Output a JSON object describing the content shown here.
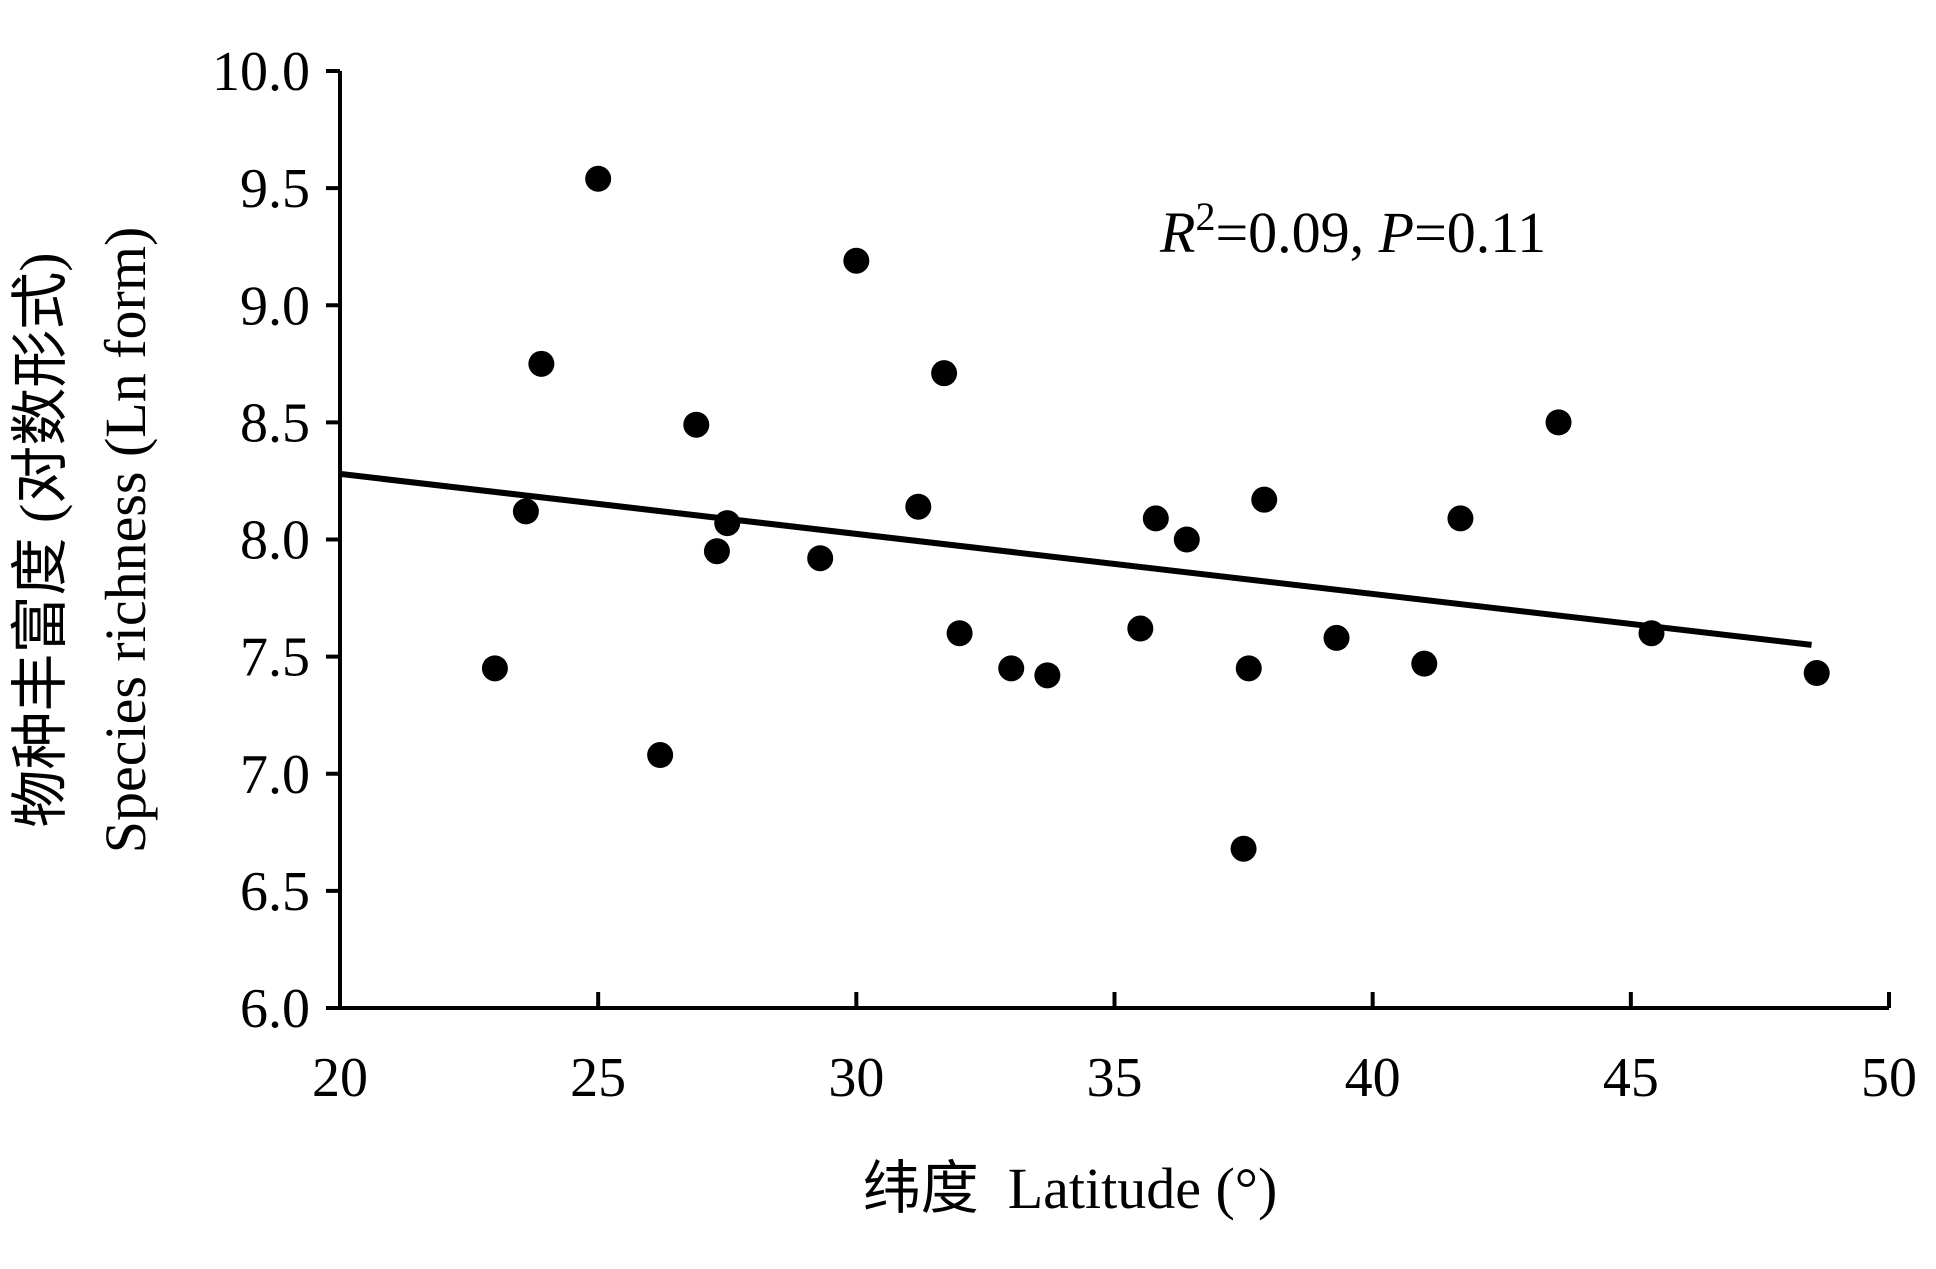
{
  "chart_data": {
    "type": "scatter",
    "xlabel": "纬度  Latitude (°)",
    "ylabel_cn": "物种丰富度 (对数形式)",
    "ylabel_en": "Species richness (Ln form)",
    "xlim": [
      20,
      50
    ],
    "ylim": [
      6.0,
      10.0
    ],
    "x_ticks": [
      20,
      25,
      30,
      35,
      40,
      45,
      50
    ],
    "y_ticks": [
      6.0,
      6.5,
      7.0,
      7.5,
      8.0,
      8.5,
      9.0,
      9.5,
      10.0
    ],
    "x_tick_labels": [
      "20",
      "25",
      "30",
      "35",
      "40",
      "45",
      "50"
    ],
    "y_tick_labels": [
      "6.0",
      "6.5",
      "7.0",
      "7.5",
      "8.0",
      "8.5",
      "9.0",
      "9.5",
      "10.0"
    ],
    "annotation": {
      "r_symbol": "R",
      "r_exp": "2",
      "r_value": "=0.09, ",
      "p_symbol": "P",
      "p_value": "=0.11"
    },
    "points": [
      {
        "x": 23.0,
        "y": 7.45
      },
      {
        "x": 23.6,
        "y": 8.12
      },
      {
        "x": 23.9,
        "y": 8.75
      },
      {
        "x": 25.0,
        "y": 9.54
      },
      {
        "x": 26.2,
        "y": 7.08
      },
      {
        "x": 26.9,
        "y": 8.49
      },
      {
        "x": 27.3,
        "y": 7.95
      },
      {
        "x": 27.5,
        "y": 8.07
      },
      {
        "x": 29.3,
        "y": 7.92
      },
      {
        "x": 30.0,
        "y": 9.19
      },
      {
        "x": 31.2,
        "y": 8.14
      },
      {
        "x": 31.7,
        "y": 8.71
      },
      {
        "x": 32.0,
        "y": 7.6
      },
      {
        "x": 33.0,
        "y": 7.45
      },
      {
        "x": 33.7,
        "y": 7.42
      },
      {
        "x": 35.5,
        "y": 7.62
      },
      {
        "x": 35.8,
        "y": 8.09
      },
      {
        "x": 36.4,
        "y": 8.0
      },
      {
        "x": 37.5,
        "y": 6.68
      },
      {
        "x": 37.6,
        "y": 7.45
      },
      {
        "x": 37.9,
        "y": 8.17
      },
      {
        "x": 39.3,
        "y": 7.58
      },
      {
        "x": 41.0,
        "y": 7.47
      },
      {
        "x": 41.7,
        "y": 8.09
      },
      {
        "x": 43.6,
        "y": 8.5
      },
      {
        "x": 45.4,
        "y": 7.6
      },
      {
        "x": 48.6,
        "y": 7.43
      }
    ],
    "trendline": {
      "x": [
        20,
        48.5
      ],
      "y": [
        8.28,
        7.55
      ]
    },
    "grid": false,
    "legend": "none"
  }
}
